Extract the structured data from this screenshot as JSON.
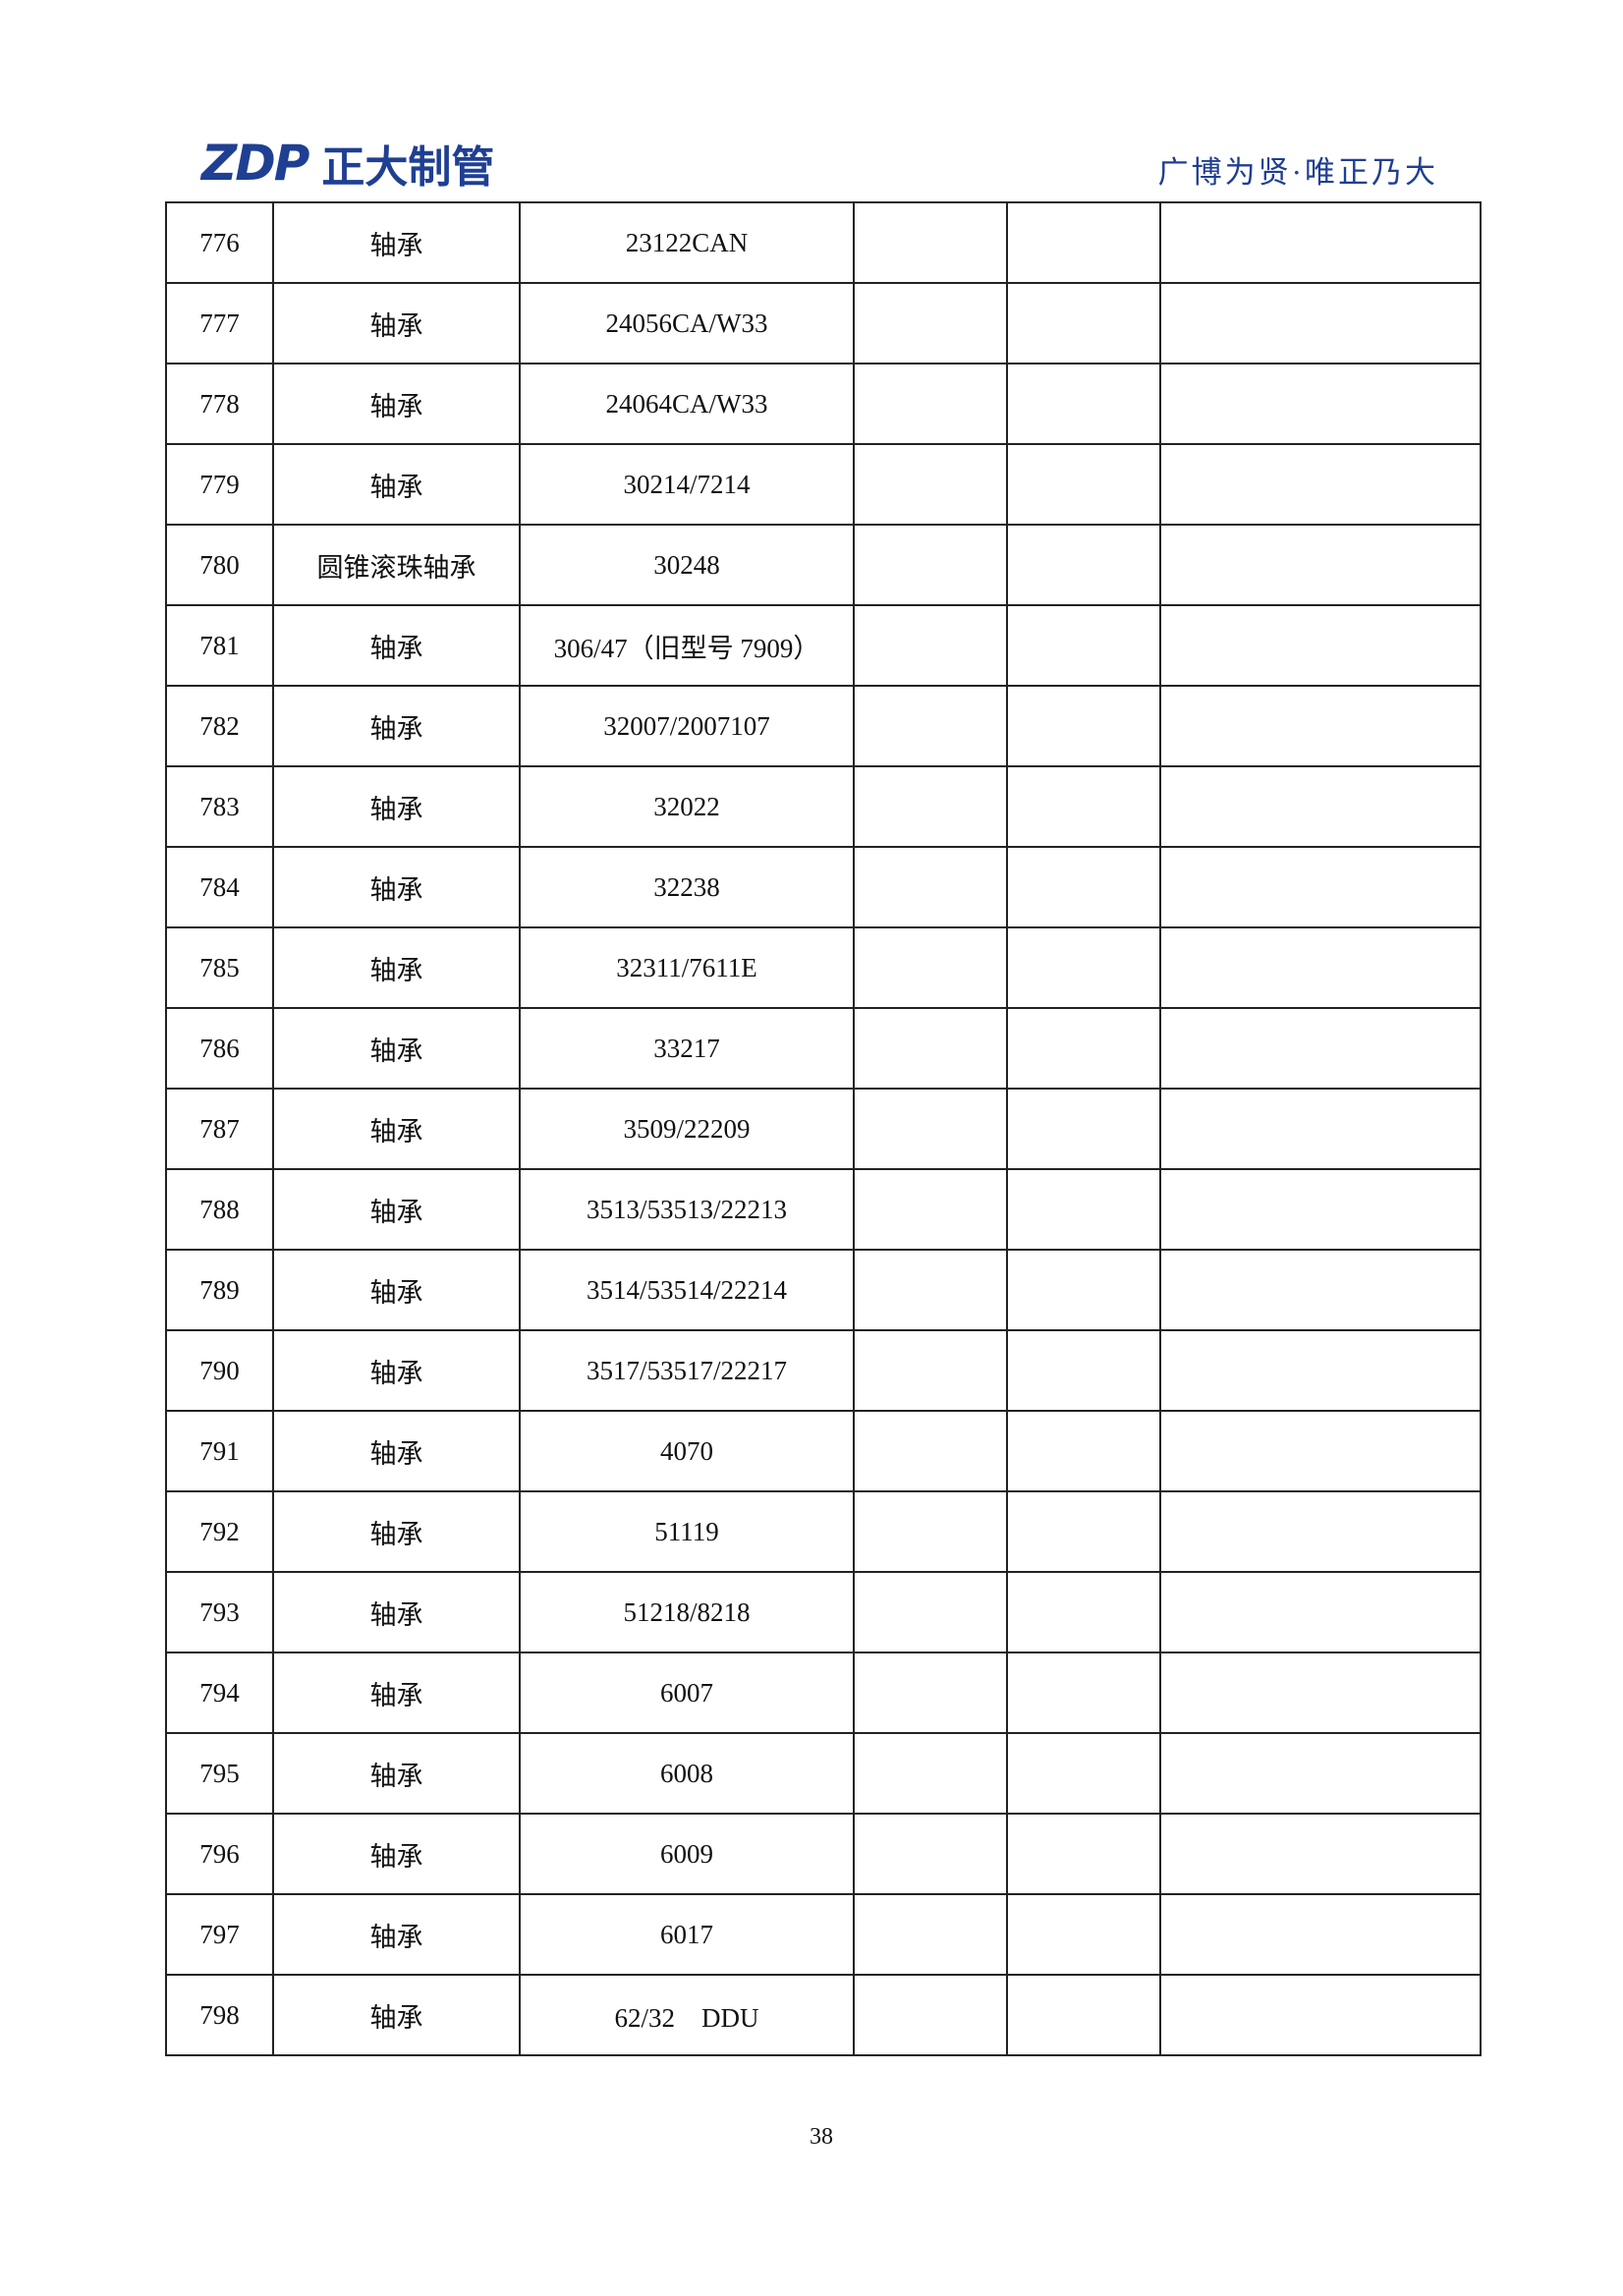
{
  "header": {
    "logo_text": "ZDP",
    "company": "正大制管",
    "slogan": "广博为贤·唯正乃大"
  },
  "table": {
    "rows": [
      [
        "776",
        "轴承",
        "23122CAN"
      ],
      [
        "777",
        "轴承",
        "24056CA/W33"
      ],
      [
        "778",
        "轴承",
        "24064CA/W33"
      ],
      [
        "779",
        "轴承",
        "30214/7214"
      ],
      [
        "780",
        "圆锥滚珠轴承",
        "30248"
      ],
      [
        "781",
        "轴承",
        "306/47（旧型号 7909）"
      ],
      [
        "782",
        "轴承",
        "32007/2007107"
      ],
      [
        "783",
        "轴承",
        "32022"
      ],
      [
        "784",
        "轴承",
        "32238"
      ],
      [
        "785",
        "轴承",
        "32311/7611E"
      ],
      [
        "786",
        "轴承",
        "33217"
      ],
      [
        "787",
        "轴承",
        "3509/22209"
      ],
      [
        "788",
        "轴承",
        "3513/53513/22213"
      ],
      [
        "789",
        "轴承",
        "3514/53514/22214"
      ],
      [
        "790",
        "轴承",
        "3517/53517/22217"
      ],
      [
        "791",
        "轴承",
        "4070"
      ],
      [
        "792",
        "轴承",
        "51119"
      ],
      [
        "793",
        "轴承",
        "51218/8218"
      ],
      [
        "794",
        "轴承",
        "6007"
      ],
      [
        "795",
        "轴承",
        "6008"
      ],
      [
        "796",
        "轴承",
        "6009"
      ],
      [
        "797",
        "轴承",
        "6017"
      ],
      [
        "798",
        "轴承",
        "62/32　DDU"
      ]
    ]
  },
  "footer": {
    "page_number": "38"
  }
}
